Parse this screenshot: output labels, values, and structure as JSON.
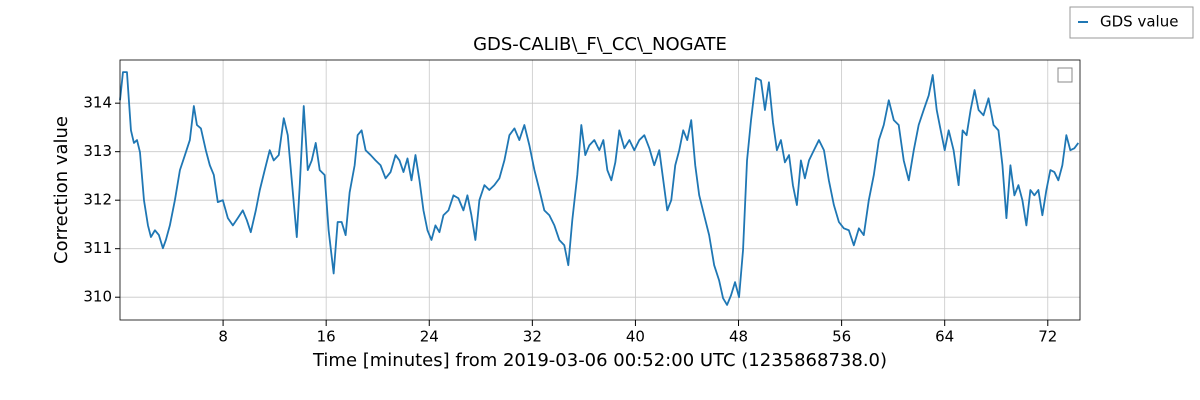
{
  "chart_data": {
    "type": "line",
    "title": "GDS-CALIB\\_F\\_CC\\_NOGATE",
    "xlabel": "Time [minutes] from 2019-03-06 00:52:00 UTC (1235868738.0)",
    "ylabel": "Correction value",
    "x": [
      0,
      0.23,
      0.54,
      0.85,
      1.08,
      1.32,
      1.55,
      1.86,
      2.17,
      2.4,
      2.71,
      3.02,
      3.33,
      3.56,
      3.87,
      4.26,
      4.65,
      5.04,
      5.42,
      5.73,
      5.97,
      6.28,
      6.66,
      6.97,
      7.28,
      7.59,
      7.98,
      8.37,
      8.76,
      9.14,
      9.53,
      9.84,
      10.15,
      10.54,
      10.85,
      11.23,
      11.62,
      11.93,
      12.32,
      12.71,
      13.02,
      13.33,
      13.72,
      13.95,
      14.26,
      14.57,
      14.88,
      15.19,
      15.5,
      15.88,
      16.19,
      16.58,
      16.89,
      17.2,
      17.51,
      17.82,
      18.21,
      18.44,
      18.75,
      19.06,
      19.45,
      19.83,
      20.22,
      20.61,
      21.0,
      21.38,
      21.69,
      22.0,
      22.31,
      22.62,
      22.93,
      23.24,
      23.55,
      23.86,
      24.17,
      24.48,
      24.79,
      25.1,
      25.49,
      25.88,
      26.26,
      26.65,
      26.96,
      27.27,
      27.58,
      27.89,
      28.28,
      28.66,
      29.05,
      29.44,
      29.83,
      30.22,
      30.61,
      30.99,
      31.38,
      31.77,
      32.16,
      32.55,
      32.93,
      33.32,
      33.71,
      34.09,
      34.48,
      34.79,
      35.1,
      35.49,
      35.8,
      36.11,
      36.42,
      36.81,
      37.2,
      37.51,
      37.82,
      38.13,
      38.44,
      38.75,
      39.14,
      39.53,
      39.91,
      40.3,
      40.69,
      41.08,
      41.46,
      41.85,
      42.16,
      42.47,
      42.78,
      43.09,
      43.4,
      43.71,
      44.02,
      44.33,
      44.64,
      44.95,
      45.33,
      45.72,
      46.11,
      46.49,
      46.8,
      47.11,
      47.42,
      47.73,
      48.04,
      48.35,
      48.66,
      48.97,
      49.36,
      49.74,
      50.05,
      50.36,
      50.67,
      50.98,
      51.29,
      51.6,
      51.92,
      52.22,
      52.53,
      52.84,
      53.15,
      53.47,
      53.85,
      54.24,
      54.63,
      55.01,
      55.4,
      55.79,
      56.17,
      56.56,
      56.95,
      57.34,
      57.72,
      58.11,
      58.5,
      58.89,
      59.27,
      59.66,
      60.05,
      60.43,
      60.82,
      61.21,
      61.6,
      61.98,
      62.37,
      62.76,
      63.07,
      63.38,
      63.69,
      64.0,
      64.31,
      64.69,
      65.08,
      65.39,
      65.7,
      66.01,
      66.32,
      66.63,
      67.01,
      67.4,
      67.79,
      68.17,
      68.48,
      68.79,
      69.1,
      69.41,
      69.72,
      70.03,
      70.34,
      70.65,
      70.96,
      71.27,
      71.58,
      71.89,
      72.2,
      72.51,
      72.82,
      73.13,
      73.44,
      73.75,
      74.06,
      74.37
    ],
    "series": [
      {
        "name": "GDS value",
        "color": "#1f77b4",
        "values": [
          314.06,
          314.64,
          314.64,
          313.44,
          313.18,
          313.24,
          312.99,
          312.0,
          311.48,
          311.24,
          311.38,
          311.28,
          311.01,
          311.18,
          311.48,
          312.0,
          312.62,
          312.93,
          313.24,
          313.94,
          313.55,
          313.48,
          313.03,
          312.72,
          312.52,
          311.96,
          312.0,
          311.63,
          311.48,
          311.63,
          311.79,
          311.59,
          311.34,
          311.79,
          312.21,
          312.62,
          313.03,
          312.82,
          312.93,
          313.69,
          313.34,
          312.41,
          311.24,
          312.31,
          313.94,
          312.62,
          312.82,
          313.18,
          312.62,
          312.52,
          311.38,
          310.49,
          311.55,
          311.55,
          311.28,
          312.16,
          312.72,
          313.34,
          313.44,
          313.03,
          312.93,
          312.82,
          312.72,
          312.45,
          312.58,
          312.93,
          312.82,
          312.58,
          312.86,
          312.41,
          312.93,
          312.41,
          311.79,
          311.38,
          311.18,
          311.48,
          311.34,
          311.69,
          311.79,
          312.1,
          312.04,
          311.79,
          312.1,
          311.69,
          311.18,
          312.0,
          312.31,
          312.21,
          312.31,
          312.45,
          312.82,
          313.34,
          313.48,
          313.24,
          313.55,
          313.13,
          312.62,
          312.21,
          311.79,
          311.69,
          311.48,
          311.18,
          311.07,
          310.66,
          311.59,
          312.52,
          313.55,
          312.93,
          313.13,
          313.24,
          313.03,
          313.24,
          312.62,
          312.41,
          312.78,
          313.44,
          313.07,
          313.24,
          313.03,
          313.24,
          313.34,
          313.07,
          312.72,
          313.03,
          312.41,
          311.79,
          312.0,
          312.72,
          313.03,
          313.44,
          313.24,
          313.65,
          312.72,
          312.1,
          311.69,
          311.28,
          310.66,
          310.35,
          309.98,
          309.84,
          310.04,
          310.31,
          310.0,
          310.97,
          312.82,
          313.65,
          314.52,
          314.47,
          313.86,
          314.43,
          313.61,
          313.03,
          313.24,
          312.78,
          312.93,
          312.31,
          311.9,
          312.82,
          312.45,
          312.82,
          313.03,
          313.24,
          313.03,
          312.41,
          311.9,
          311.55,
          311.42,
          311.38,
          311.07,
          311.42,
          311.28,
          312.0,
          312.52,
          313.24,
          313.55,
          314.06,
          313.65,
          313.55,
          312.82,
          312.41,
          313.03,
          313.55,
          313.86,
          314.16,
          314.58,
          313.86,
          313.44,
          313.03,
          313.44,
          313.03,
          312.31,
          313.44,
          313.34,
          313.86,
          314.27,
          313.86,
          313.75,
          314.1,
          313.55,
          313.44,
          312.72,
          311.63,
          312.72,
          312.1,
          312.31,
          312.0,
          311.48,
          312.21,
          312.1,
          312.21,
          311.69,
          312.21,
          312.62,
          312.58,
          312.41,
          312.72,
          313.34,
          313.03,
          313.07,
          313.18
        ]
      }
    ],
    "xlim": [
      0,
      74.5
    ],
    "ylim": [
      309.53,
      314.89
    ],
    "xticks": [
      8,
      16,
      24,
      32,
      40,
      48,
      56,
      64,
      72
    ],
    "yticks": [
      310,
      311,
      312,
      313,
      314
    ],
    "grid": true
  }
}
